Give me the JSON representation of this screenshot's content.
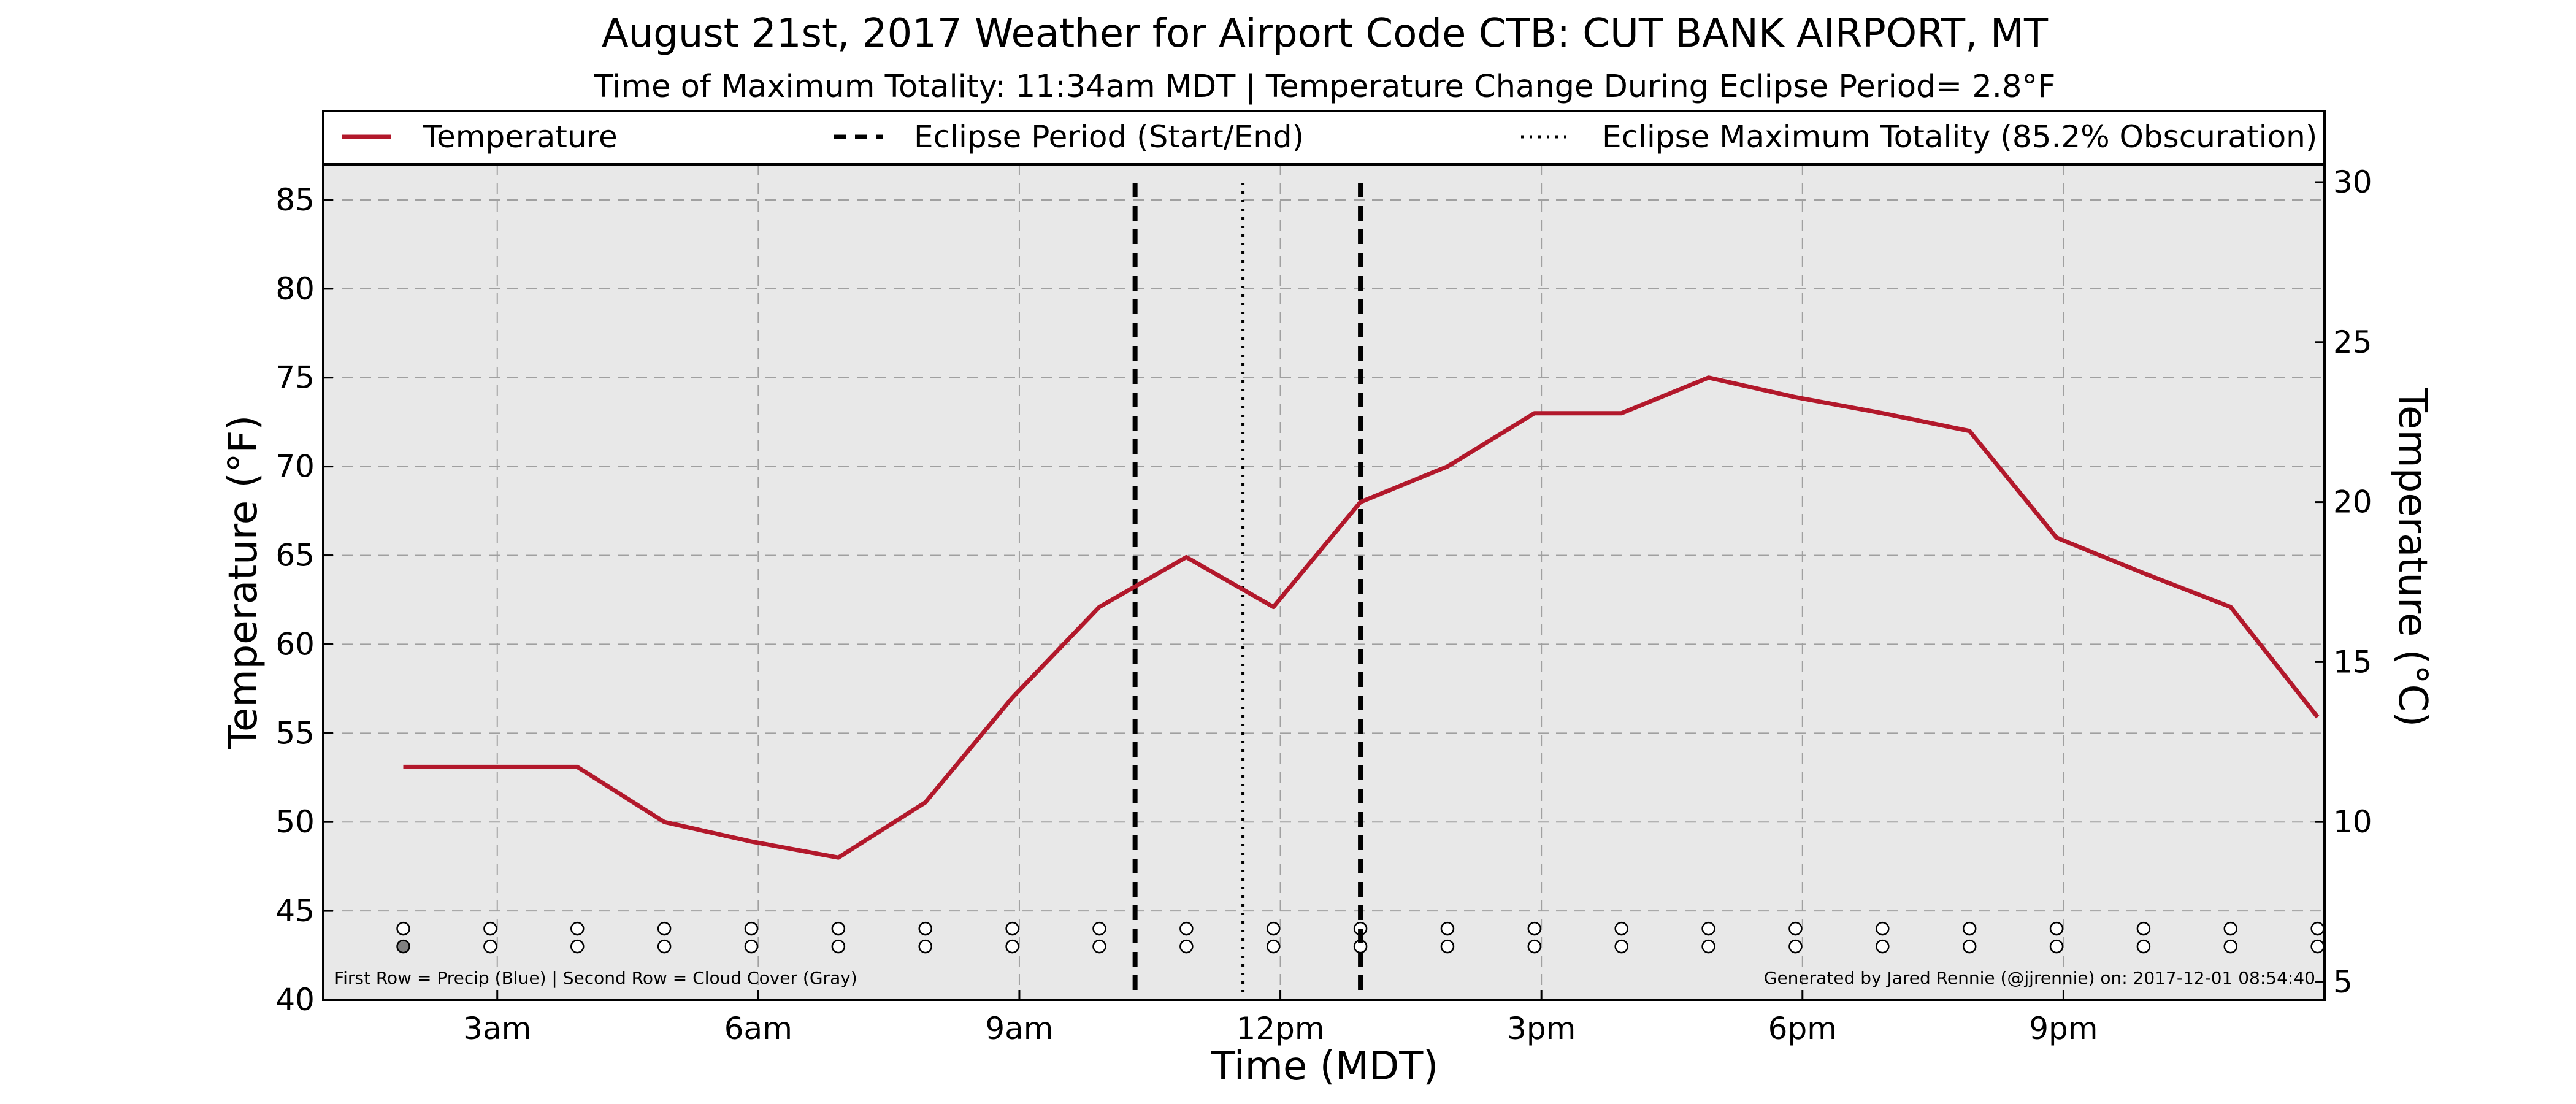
{
  "chart_data": {
    "type": "line",
    "title": "August 21st, 2017 Weather for Airport Code CTB: CUT BANK AIRPORT, MT",
    "subtitle": "Time of Maximum Totality: 11:34am MDT | Temperature Change During Eclipse Period= 2.8°F",
    "xlabel": "Time (MDT)",
    "ylabel": "Temperature (°F)",
    "ylabel_right": "Temperature (°C)",
    "xlim": [
      1.0,
      24.0
    ],
    "ylim": [
      40,
      87
    ],
    "ylim_right_c": [
      4.444,
      30.556
    ],
    "x_ticks": [
      {
        "x": 3,
        "label": "3am"
      },
      {
        "x": 6,
        "label": "6am"
      },
      {
        "x": 9,
        "label": "9am"
      },
      {
        "x": 12,
        "label": "12pm"
      },
      {
        "x": 15,
        "label": "3pm"
      },
      {
        "x": 18,
        "label": "6pm"
      },
      {
        "x": 21,
        "label": "9pm"
      }
    ],
    "y_ticks": [
      40,
      45,
      50,
      55,
      60,
      65,
      70,
      75,
      80,
      85
    ],
    "y_ticks_right": [
      5,
      10,
      15,
      20,
      25,
      30
    ],
    "grid": true,
    "legend_position": "top",
    "series": [
      {
        "name": "Temperature",
        "color": "#b2182b",
        "x": [
          1.92,
          2.92,
          3.92,
          4.92,
          5.92,
          6.92,
          7.92,
          8.92,
          9.92,
          10.92,
          11.92,
          12.92,
          13.92,
          14.92,
          15.92,
          16.92,
          17.92,
          18.92,
          19.92,
          20.92,
          21.92,
          22.92,
          23.92
        ],
        "y": [
          53.1,
          53.1,
          53.1,
          50.0,
          48.9,
          48.0,
          51.1,
          57.0,
          62.1,
          64.9,
          62.1,
          68.0,
          70.0,
          73.0,
          73.0,
          75.0,
          73.9,
          73.0,
          72.0,
          66.0,
          64.0,
          62.1,
          55.9
        ]
      }
    ],
    "vertical_lines": [
      {
        "name": "Eclipse Period (Start/End)",
        "style": "dashed",
        "x": [
          10.33,
          12.92
        ]
      },
      {
        "name": "Eclipse Maximum Totality (85.2% Obscuration)",
        "style": "dotted",
        "x": [
          11.57
        ]
      }
    ],
    "precip_row": {
      "x": [
        1.92,
        2.92,
        3.92,
        4.92,
        5.92,
        6.92,
        7.92,
        8.92,
        9.92,
        10.92,
        11.92,
        12.92,
        13.92,
        14.92,
        15.92,
        16.92,
        17.92,
        18.92,
        19.92,
        20.92,
        21.92,
        22.92,
        23.92
      ],
      "y": 44.0,
      "color": "#ffffff"
    },
    "cloud_row": {
      "x": [
        1.92,
        2.92,
        3.92,
        4.92,
        5.92,
        6.92,
        7.92,
        8.92,
        9.92,
        10.92,
        11.92,
        12.92,
        13.92,
        14.92,
        15.92,
        16.92,
        17.92,
        18.92,
        19.92,
        20.92,
        21.92,
        22.92,
        23.92
      ],
      "y": 43.0,
      "colors": [
        "#808080",
        "#ffffff",
        "#ffffff",
        "#ffffff",
        "#ffffff",
        "#ffffff",
        "#ffffff",
        "#ffffff",
        "#ffffff",
        "#ffffff",
        "#ffffff",
        "#ffffff",
        "#ffffff",
        "#ffffff",
        "#ffffff",
        "#ffffff",
        "#ffffff",
        "#ffffff",
        "#ffffff",
        "#ffffff",
        "#ffffff",
        "#ffffff",
        "#ffffff"
      ]
    },
    "footnote_left": "First Row = Precip (Blue) | Second Row = Cloud Cover (Gray)",
    "footnote_right": "Generated by Jared Rennie (@jjrennie) on: 2017-12-01 08:54:40",
    "colors": {
      "plot_bg": "#e8e8e8",
      "line": "#b2182b",
      "grid": "#a0a0a0"
    }
  }
}
